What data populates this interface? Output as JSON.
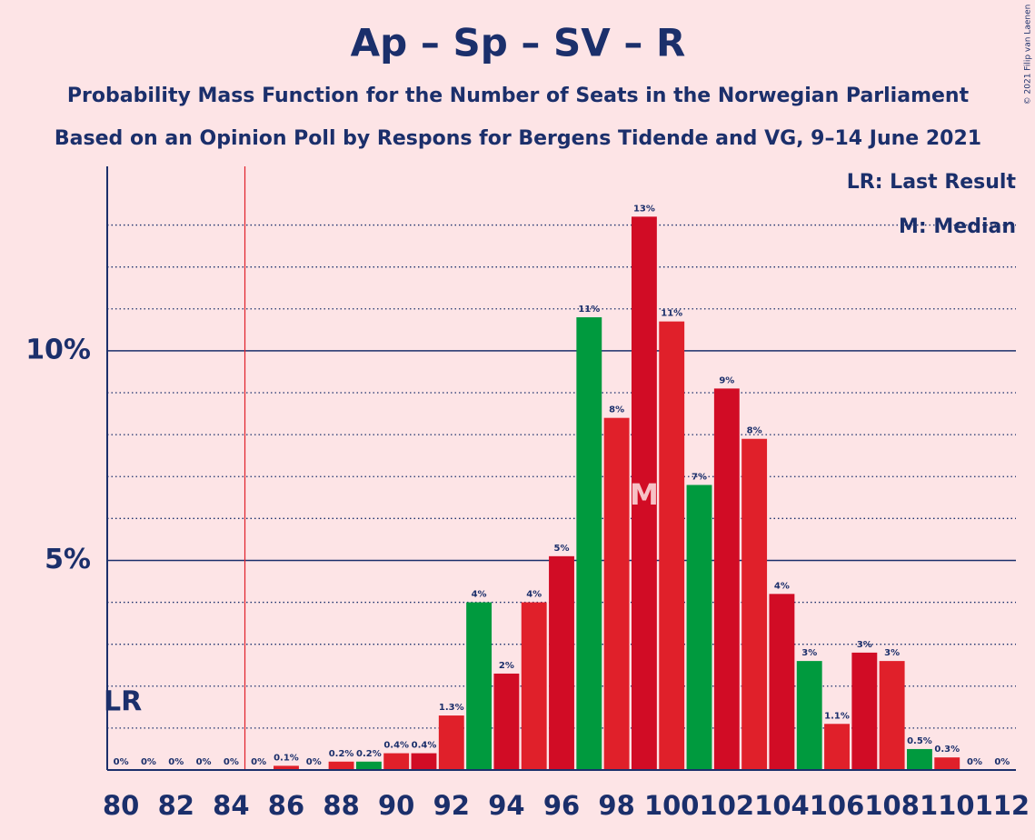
{
  "chart_data": {
    "type": "bar",
    "title": "Ap – Sp – SV – R",
    "subtitle": "Probability Mass Function for the Number of Seats in the Norwegian Parliament",
    "subtitle2": "Based on an Opinion Poll by Respons for Bergens Tidende and VG, 9–14 June 2021",
    "copyright": "© 2021 Filip van Laenen",
    "legend": [
      "LR: Last Result",
      "M: Median"
    ],
    "x": [
      80,
      81,
      82,
      83,
      84,
      85,
      86,
      87,
      88,
      89,
      90,
      91,
      92,
      93,
      94,
      95,
      96,
      97,
      98,
      99,
      100,
      101,
      102,
      103,
      104,
      105,
      106,
      107,
      108,
      109,
      110,
      111,
      112
    ],
    "values": [
      0,
      0,
      0,
      0,
      0,
      0,
      0.1,
      0,
      0.2,
      0.2,
      0.4,
      0.4,
      1.3,
      4.0,
      2.3,
      4.0,
      5.1,
      10.8,
      8.4,
      13.2,
      10.7,
      6.8,
      9.1,
      7.9,
      4.2,
      2.6,
      1.1,
      2.8,
      2.6,
      0.5,
      0.3,
      0,
      0
    ],
    "value_labels": [
      "0%",
      "0%",
      "0%",
      "0%",
      "0%",
      "0%",
      "0.1%",
      "0%",
      "0.2%",
      "0.2%",
      "0.4%",
      "0.4%",
      "1.3%",
      "4%",
      "2%",
      "4%",
      "5%",
      "11%",
      "8%",
      "13%",
      "11%",
      "7%",
      "9%",
      "8%",
      "4%",
      "3%",
      "1.1%",
      "3%",
      "3%",
      "0.5%",
      "0.3%",
      "0%",
      "0%"
    ],
    "colors": [
      "#e0202a",
      "#d10c25",
      "#e0202a",
      "#d10c25",
      "#e0202a",
      "#d10c25",
      "#e0202a",
      "#d10c25",
      "#e0202a",
      "#009a3e",
      "#e0202a",
      "#d10c25",
      "#e0202a",
      "#009a3e",
      "#d10c25",
      "#e0202a",
      "#d10c25",
      "#009a3e",
      "#e0202a",
      "#d10c25",
      "#e0202a",
      "#009a3e",
      "#d10c25",
      "#e0202a",
      "#d10c25",
      "#009a3e",
      "#e0202a",
      "#d10c25",
      "#e0202a",
      "#009a3e",
      "#e0202a",
      "#d10c25",
      "#e0202a"
    ],
    "xlim": [
      79.5,
      112.5
    ],
    "xticks": [
      80,
      82,
      84,
      86,
      88,
      90,
      92,
      94,
      96,
      98,
      100,
      102,
      104,
      106,
      108,
      110,
      112
    ],
    "ylim": [
      0,
      14.4
    ],
    "yticks": [
      {
        "value": 5,
        "label": "5%"
      },
      {
        "value": 10,
        "label": "10%"
      }
    ],
    "minor_yticks": [
      1,
      2,
      3,
      4,
      6,
      7,
      8,
      9,
      11,
      12,
      13
    ],
    "last_result": {
      "label": "LR",
      "x": 85
    },
    "median": {
      "label": "M",
      "x": 99
    }
  }
}
